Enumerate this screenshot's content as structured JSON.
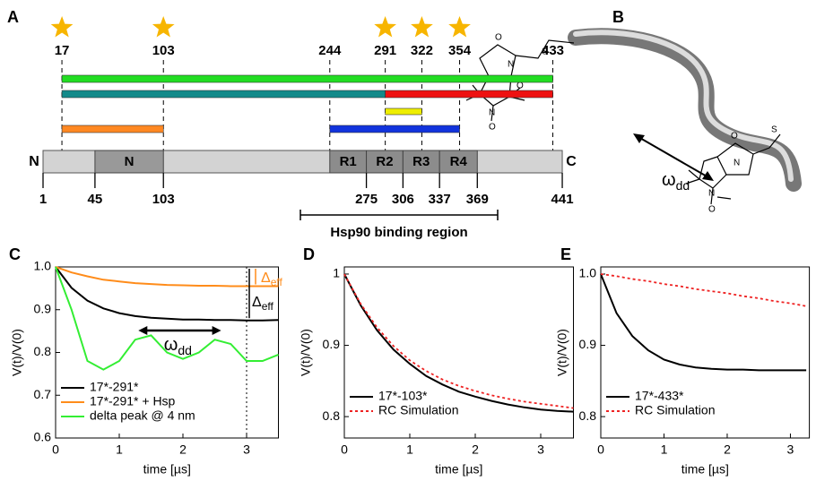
{
  "diagram": {
    "panel_a": "A",
    "panel_b": "B",
    "top_labels": [
      17,
      103,
      244,
      291,
      322,
      354,
      433
    ],
    "stars": [
      17,
      103,
      291,
      322,
      354
    ],
    "segments": [
      {
        "start": 17,
        "end": 433,
        "color": "#22dd22"
      },
      {
        "start": 17,
        "end": 291,
        "color": "#138a8a"
      },
      {
        "start": 291,
        "end": 433,
        "color": "#ee1111"
      },
      {
        "start": 291,
        "end": 322,
        "color": "#eeee00"
      },
      {
        "start": 244,
        "end": 354,
        "color": "#1133dd"
      },
      {
        "start": 17,
        "end": 103,
        "color": "#ff8822"
      }
    ],
    "domain": {
      "start": 1,
      "end": 441,
      "label_n": "N",
      "label_c": "C"
    },
    "subdomains": [
      {
        "label": "N",
        "start": 45,
        "end": 103
      },
      {
        "label": "R1",
        "start": 244,
        "end": 275
      },
      {
        "label": "R2",
        "start": 275,
        "end": 306
      },
      {
        "label": "R3",
        "start": 306,
        "end": 337
      },
      {
        "label": "R4",
        "start": 337,
        "end": 369
      }
    ],
    "bottom_labels": [
      1,
      45,
      103,
      275,
      306,
      337,
      369,
      441
    ],
    "binding_region": "Hsp90 binding region",
    "molecule": {
      "omega": "ω",
      "omega_sub": "dd",
      "atoms": [
        "O",
        "O",
        "N",
        "S",
        "N",
        "O",
        "O",
        "N",
        "S",
        "N",
        "O"
      ]
    }
  },
  "chart_data": [
    {
      "type": "line",
      "panel": "C",
      "xlabel": "time [µs]",
      "ylabel": "V(t)/V(0)",
      "xlim": [
        0,
        3.5
      ],
      "ylim": [
        0.6,
        1.0
      ],
      "xticks": [
        0,
        1,
        2,
        3
      ],
      "yticks": [
        0.6,
        0.7,
        0.8,
        0.9,
        {
          "value": 1.0,
          "label": "1.0"
        }
      ],
      "x": [
        0,
        0.25,
        0.5,
        0.75,
        1,
        1.25,
        1.5,
        1.75,
        2,
        2.25,
        2.5,
        2.75,
        3,
        3.25,
        3.5
      ],
      "series": [
        {
          "name": "17*-291*",
          "color": "#000000",
          "style": "solid",
          "values": [
            1,
            0.951,
            0.921,
            0.903,
            0.892,
            0.885,
            0.881,
            0.879,
            0.877,
            0.877,
            0.876,
            0.876,
            0.875,
            0.875,
            0.876
          ]
        },
        {
          "name": "17*-291* + Hsp",
          "color": "#ff8c1a",
          "style": "solid",
          "values": [
            1,
            0.987,
            0.978,
            0.97,
            0.966,
            0.962,
            0.96,
            0.958,
            0.957,
            0.956,
            0.956,
            0.955,
            0.955,
            0.955,
            0.955
          ]
        },
        {
          "name": "delta peak @ 4 nm",
          "color": "#33ee33",
          "style": "solid",
          "values": [
            1,
            0.9,
            0.78,
            0.76,
            0.78,
            0.83,
            0.84,
            0.8,
            0.785,
            0.8,
            0.83,
            0.82,
            0.78,
            0.78,
            0.795
          ]
        }
      ],
      "guide_x": 3,
      "guide_y": 1.0,
      "annotations": {
        "delta": "Δ",
        "delta_sub": "eff",
        "omega": "ω",
        "omega_sub": "dd"
      }
    },
    {
      "type": "line",
      "panel": "D",
      "xlabel": "time [µs]",
      "ylabel": "V(t)/V(0)",
      "xlim": [
        0,
        3.5
      ],
      "ylim": [
        0.77,
        1.01
      ],
      "xticks": [
        0,
        1,
        2,
        3
      ],
      "yticks": [
        0.8,
        0.9,
        1
      ],
      "x": [
        0,
        0.25,
        0.5,
        0.75,
        1,
        1.25,
        1.5,
        1.75,
        2,
        2.25,
        2.5,
        2.75,
        3,
        3.25,
        3.5
      ],
      "series": [
        {
          "name": "17*-103*",
          "color": "#000000",
          "style": "solid",
          "values": [
            1,
            0.956,
            0.921,
            0.894,
            0.874,
            0.857,
            0.845,
            0.835,
            0.828,
            0.822,
            0.817,
            0.813,
            0.81,
            0.808,
            0.807
          ]
        },
        {
          "name": "RC Simulation",
          "color": "#ee2222",
          "style": "dotted",
          "values": [
            1,
            0.958,
            0.925,
            0.899,
            0.879,
            0.864,
            0.852,
            0.843,
            0.836,
            0.83,
            0.825,
            0.821,
            0.818,
            0.815,
            0.812
          ]
        }
      ]
    },
    {
      "type": "line",
      "panel": "E",
      "xlabel": "time [µs]",
      "ylabel": "V(t)/V(0)",
      "xlim": [
        0,
        3.3
      ],
      "ylim": [
        0.77,
        1.01
      ],
      "xticks": [
        0,
        1,
        2,
        3
      ],
      "yticks": [
        {
          "value": 0.8,
          "label": "0.8"
        },
        {
          "value": 0.9,
          "label": "0.9"
        },
        {
          "value": 1.0,
          "label": "1.0"
        }
      ],
      "x": [
        0,
        0.25,
        0.5,
        0.75,
        1,
        1.25,
        1.5,
        1.75,
        2,
        2.25,
        2.5,
        2.75,
        3,
        3.25
      ],
      "series": [
        {
          "name": "17*-433*",
          "color": "#000000",
          "style": "solid",
          "values": [
            1,
            0.945,
            0.913,
            0.893,
            0.88,
            0.873,
            0.869,
            0.867,
            0.866,
            0.866,
            0.865,
            0.865,
            0.865,
            0.865
          ]
        },
        {
          "name": "RC Simulation",
          "color": "#ee2222",
          "style": "dotted",
          "values": [
            1,
            0.997,
            0.993,
            0.99,
            0.986,
            0.983,
            0.979,
            0.976,
            0.973,
            0.969,
            0.966,
            0.962,
            0.959,
            0.955
          ]
        }
      ]
    }
  ]
}
